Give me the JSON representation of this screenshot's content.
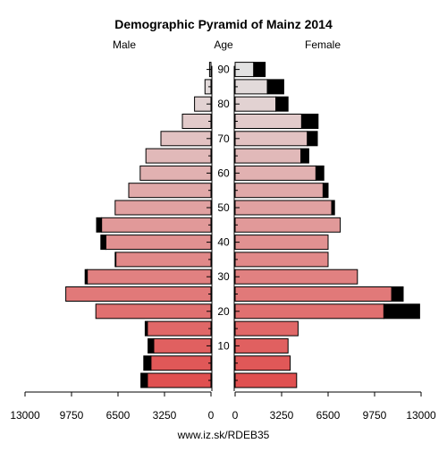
{
  "chart_data": {
    "type": "bar",
    "title": "Demographic Pyramid of Mainz 2014",
    "left_label": "Male",
    "center_label": "Age",
    "right_label": "Female",
    "footer": "www.iz.sk/RDEB35",
    "age_groups": [
      "0-4",
      "5-9",
      "10-14",
      "15-19",
      "20-24",
      "25-29",
      "30-34",
      "35-39",
      "40-44",
      "45-49",
      "50-54",
      "55-59",
      "60-64",
      "65-69",
      "70-74",
      "75-79",
      "80-84",
      "85-89",
      "90+"
    ],
    "age_ticks": [
      "10",
      "20",
      "30",
      "40",
      "50",
      "60",
      "70",
      "80",
      "90"
    ],
    "x_ticks_left": [
      "13000",
      "9750",
      "6500",
      "3250",
      "0"
    ],
    "x_ticks_right": [
      "0",
      "3250",
      "6500",
      "9750",
      "13000"
    ],
    "xlim": [
      0,
      13000
    ],
    "series": [
      {
        "name": "Male",
        "values": [
          4450,
          4200,
          4000,
          4450,
          8050,
          10150,
          8650,
          6650,
          7350,
          7650,
          6700,
          5750,
          4950,
          4550,
          3500,
          2000,
          1150,
          420,
          100
        ],
        "excess_values": [
          450,
          500,
          400,
          150,
          0,
          0,
          150,
          50,
          350,
          350,
          0,
          0,
          0,
          0,
          0,
          0,
          0,
          0,
          0
        ]
      },
      {
        "name": "Female",
        "values": [
          4300,
          3850,
          3700,
          4400,
          10400,
          10950,
          8550,
          6500,
          6500,
          7350,
          6750,
          6150,
          5650,
          4600,
          5050,
          4650,
          2850,
          2250,
          1300
        ],
        "excess_values": [
          0,
          0,
          0,
          0,
          2500,
          800,
          0,
          0,
          0,
          0,
          200,
          350,
          550,
          550,
          700,
          1150,
          850,
          1150,
          800
        ]
      }
    ],
    "colors": {
      "young": "#e05050",
      "old": "#e2e2e2",
      "excess": "#000000"
    }
  }
}
